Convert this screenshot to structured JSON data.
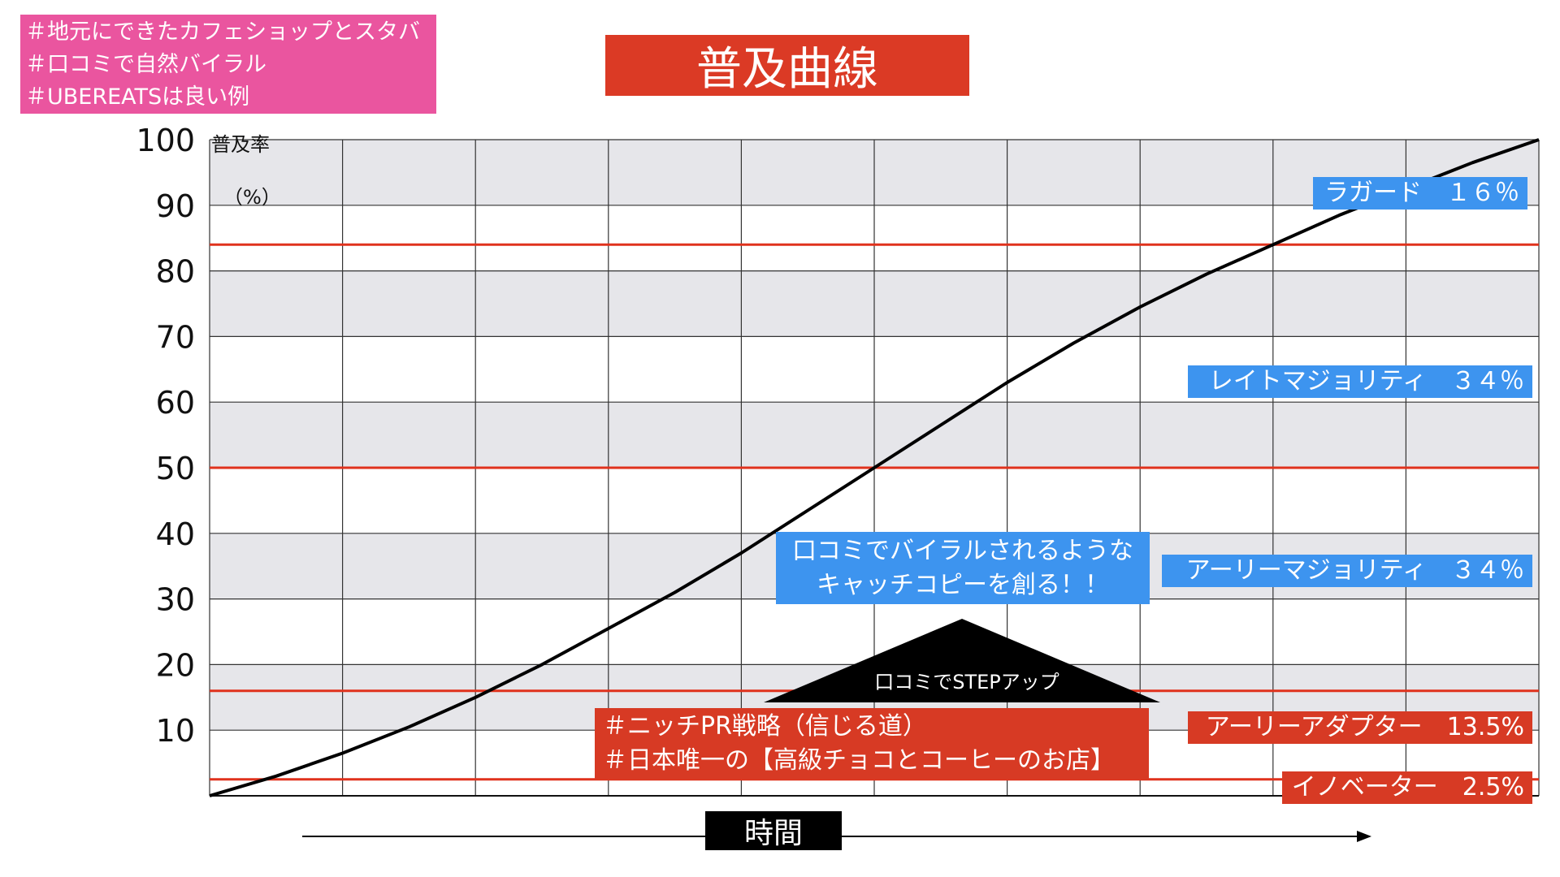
{
  "title": "普及曲線",
  "hashtags": [
    "＃地元にできたカフェショップとスタバ",
    "＃口コミで自然バイラル",
    "＃UBEREATSは良い例"
  ],
  "y_axis_label": "普及率",
  "y_axis_unit": "（%）",
  "x_axis_label": "時間",
  "segments": {
    "laggards": "ラガード　１６％",
    "late_majority": "レイトマジョリティ　３４％",
    "early_majority": "アーリーマジョリティ　３４％",
    "early_adopters": "アーリーアダプター　13.5%",
    "innovators": "イノベーター　2.5%"
  },
  "callout": {
    "line1": "口コミでバイラルされるような",
    "line2": "キャッチコピーを創る！！"
  },
  "step_up_label": "口コミでSTEPアップ",
  "strategy": {
    "line1": "＃ニッチPR戦略（信じる道）",
    "line2": "＃日本唯一の【高級チョコとコーヒーのお店】"
  },
  "colors": {
    "title_bg": "#db3a25",
    "hashtag_bg": "#ea559f",
    "segment_blue": "#3d94ef",
    "segment_red": "#d73a24",
    "threshold_line": "#e0321d",
    "band_gray": "#e6e6ea",
    "curve": "#000000"
  },
  "chart_data": {
    "type": "line",
    "yticks": [
      10,
      20,
      30,
      40,
      50,
      60,
      70,
      80,
      90,
      100
    ],
    "ylim": [
      0,
      100
    ],
    "xlim": [
      0,
      10
    ],
    "x_gridlines": 10,
    "threshold_lines": [
      2.5,
      16,
      50,
      84
    ],
    "series": [
      {
        "x": [
          0,
          0.5,
          1,
          1.5,
          2,
          2.5,
          3,
          3.5,
          4,
          4.5,
          5,
          5.5,
          6,
          6.5,
          7,
          7.5,
          8,
          8.5,
          9,
          9.5,
          10
        ],
        "y": [
          0,
          3,
          6.5,
          10.5,
          15,
          20,
          25.5,
          31,
          37,
          43.5,
          50,
          56.5,
          63,
          69,
          74.5,
          79.5,
          84,
          88.5,
          92.5,
          96.5,
          100
        ]
      }
    ]
  }
}
